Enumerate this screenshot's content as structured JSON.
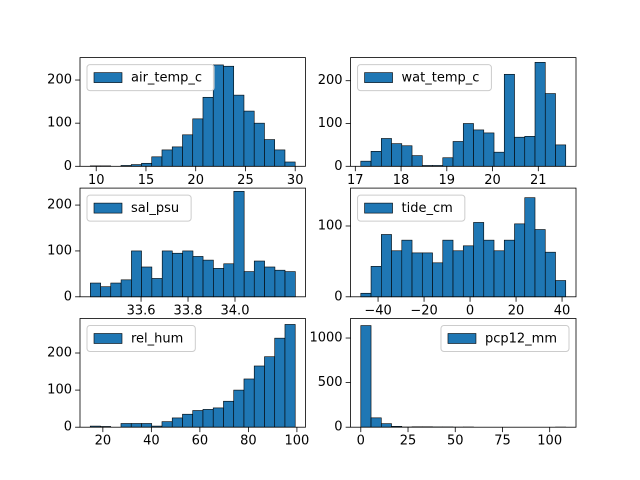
{
  "chart_data": [
    {
      "type": "histogram",
      "legend": "upper left",
      "series": [
        {
          "name": "air_temp_c",
          "color": "#1f77b4",
          "values": [
            1,
            1,
            0,
            2,
            4,
            7,
            22,
            38,
            45,
            73,
            110,
            160,
            235,
            232,
            165,
            128,
            100,
            62,
            38,
            10
          ]
        }
      ],
      "bins": [
        9.4,
        10.43,
        11.46,
        12.49,
        13.52,
        14.55,
        15.58,
        16.61,
        17.64,
        18.67,
        19.7,
        20.73,
        21.76,
        22.79,
        23.82,
        24.85,
        25.88,
        26.91,
        27.94,
        28.97,
        30.0
      ],
      "xlim": [
        8.37,
        31.03
      ],
      "ylim": [
        0,
        252
      ],
      "xticks": [
        10,
        15,
        20,
        25,
        30
      ],
      "yticks": [
        0,
        100,
        200
      ]
    },
    {
      "type": "histogram",
      "legend": "upper left",
      "series": [
        {
          "name": "wat_temp_c",
          "color": "#1f77b4",
          "values": [
            12,
            35,
            65,
            53,
            48,
            25,
            2,
            2,
            20,
            58,
            100,
            85,
            78,
            33,
            215,
            68,
            70,
            243,
            170,
            50
          ]
        }
      ],
      "bins": [
        17.12,
        17.344,
        17.568,
        17.792,
        18.016,
        18.24,
        18.464,
        18.688,
        18.912,
        19.136,
        19.36,
        19.584,
        19.808,
        20.032,
        20.256,
        20.48,
        20.704,
        20.928,
        21.152,
        21.376,
        21.6
      ],
      "xlim": [
        16.896,
        21.824
      ],
      "ylim": [
        0,
        254
      ],
      "xticks": [
        17,
        18,
        19,
        20,
        21
      ],
      "yticks": [
        0,
        100,
        200
      ]
    },
    {
      "type": "histogram",
      "legend": "upper left",
      "series": [
        {
          "name": "sal_psu",
          "color": "#1f77b4",
          "values": [
            30,
            22,
            30,
            37,
            100,
            65,
            40,
            100,
            95,
            100,
            88,
            80,
            62,
            72,
            230,
            55,
            78,
            65,
            58,
            55
          ]
        }
      ],
      "bins": [
        33.384,
        33.428,
        33.471,
        33.515,
        33.559,
        33.602,
        33.646,
        33.69,
        33.733,
        33.777,
        33.821,
        33.864,
        33.908,
        33.952,
        33.995,
        34.039,
        34.082,
        34.126,
        34.17,
        34.213,
        34.257
      ],
      "xlim": [
        33.34,
        34.3
      ],
      "ylim": [
        0,
        237
      ],
      "xticks": [
        33.6,
        33.8,
        {
          "value": 34,
          "label": "34.0"
        }
      ],
      "yticks": [
        0,
        100,
        200
      ]
    },
    {
      "type": "histogram",
      "legend": "upper left",
      "series": [
        {
          "name": "tide_cm",
          "color": "#1f77b4",
          "values": [
            5,
            43,
            88,
            65,
            80,
            62,
            62,
            48,
            80,
            65,
            72,
            105,
            80,
            65,
            80,
            103,
            140,
            95,
            63,
            23
          ]
        }
      ],
      "bins": [
        -47.5,
        -43.045,
        -38.59,
        -34.135,
        -29.68,
        -25.225,
        -20.77,
        -16.315,
        -11.86,
        -7.405,
        -2.95,
        1.505,
        5.96,
        10.415,
        14.87,
        19.325,
        23.78,
        28.235,
        32.69,
        37.145,
        41.6
      ],
      "xlim": [
        -51.96,
        46.06
      ],
      "ylim": [
        0,
        153.5
      ],
      "xticks": [
        {
          "value": -40,
          "label": "−40"
        },
        {
          "value": -20,
          "label": "−20"
        },
        0,
        20,
        40
      ],
      "yticks": [
        0,
        100
      ]
    },
    {
      "type": "histogram",
      "legend": "upper left",
      "series": [
        {
          "name": "rel_hum",
          "color": "#1f77b4",
          "values": [
            3,
            2,
            0,
            10,
            10,
            10,
            3,
            15,
            25,
            35,
            45,
            48,
            52,
            70,
            100,
            130,
            165,
            190,
            240,
            277
          ]
        }
      ],
      "bins": [
        14.8,
        19.025,
        23.25,
        27.475,
        31.7,
        35.925,
        40.15,
        44.375,
        48.6,
        52.825,
        57.05,
        61.275,
        65.5,
        69.725,
        73.95,
        78.175,
        82.4,
        86.625,
        90.85,
        95.075,
        99.3
      ],
      "xlim": [
        10.58,
        103.52
      ],
      "ylim": [
        0,
        293
      ],
      "xticks": [
        20,
        40,
        60,
        80,
        100
      ],
      "yticks": [
        0,
        100,
        200
      ]
    },
    {
      "type": "histogram",
      "legend": "upper right",
      "series": [
        {
          "name": "pcp12_mm",
          "color": "#1f77b4",
          "values": [
            1140,
            105,
            40,
            10,
            2,
            5,
            5,
            3,
            3,
            1,
            2,
            0,
            0,
            0,
            0,
            0,
            0,
            0,
            0,
            1
          ]
        }
      ],
      "bins": [
        0,
        5.425,
        10.85,
        16.275,
        21.7,
        27.125,
        32.55,
        37.975,
        43.4,
        48.825,
        54.25,
        59.675,
        65.1,
        70.525,
        75.95,
        81.375,
        86.8,
        92.225,
        97.65,
        103.075,
        108.5
      ],
      "xlim": [
        -5.425,
        113.925
      ],
      "ylim": [
        0,
        1219
      ],
      "xticks": [
        0,
        25,
        50,
        75,
        100
      ],
      "yticks": [
        0,
        500,
        1000
      ]
    }
  ]
}
